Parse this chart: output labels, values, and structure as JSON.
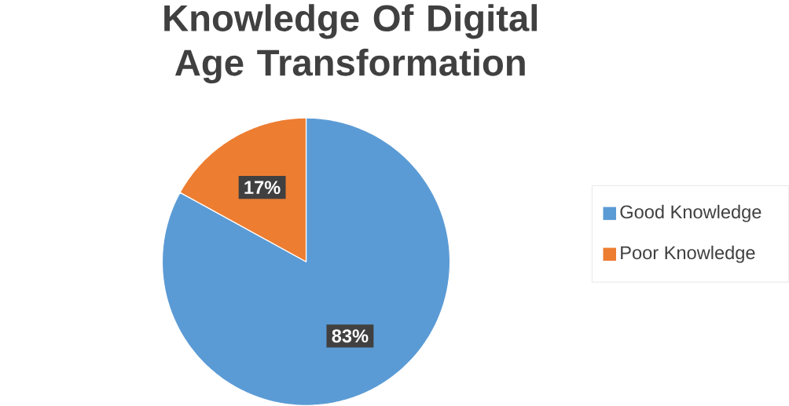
{
  "chart_data": {
    "type": "pie",
    "title": "Knowledge Of  Digital Age Transformation",
    "categories": [
      "Good Knowledge",
      "Poor Knowledge"
    ],
    "values": [
      83,
      17
    ],
    "value_labels": [
      "83%",
      "17%"
    ],
    "colors": [
      "#5b9bd5",
      "#ed7d31"
    ],
    "legend": "right"
  }
}
